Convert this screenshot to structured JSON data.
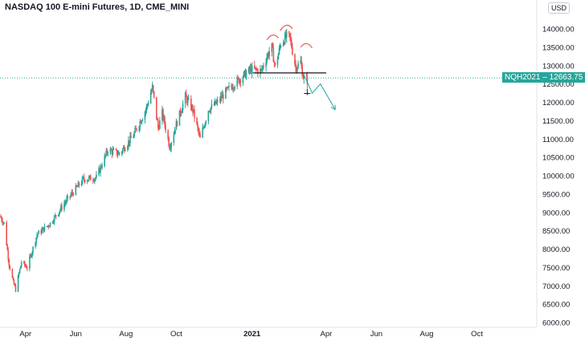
{
  "header": {
    "title": "NASDAQ 100 E-mini Futures, 1D, CME_MINI",
    "currency": "USD"
  },
  "price_label": {
    "symbol": "NQH2021",
    "value": "12663.75"
  },
  "colors": {
    "up": "#26a69a",
    "down": "#ef5350",
    "price_line": "#26a69a",
    "annotation_red": "#ef5350",
    "annotation_neckline": "#131722",
    "projection": "#26a69a"
  },
  "chart_data": {
    "type": "candlestick",
    "title": "NASDAQ 100 E-mini Futures, 1D, CME_MINI",
    "y_axis": {
      "ticks": [
        "14000.00",
        "13500.00",
        "13000.00",
        "12500.00",
        "12000.00",
        "11500.00",
        "11000.00",
        "10500.00",
        "10000.00",
        "9500.00",
        "9000.00",
        "8500.00",
        "8000.00",
        "7500.00",
        "7000.00",
        "6500.00",
        "6000.00"
      ],
      "ylim": [
        5900,
        14500
      ],
      "position": "right"
    },
    "x_axis": {
      "ticks": [
        {
          "label": "Apr",
          "bold": false
        },
        {
          "label": "Jun",
          "bold": false
        },
        {
          "label": "Aug",
          "bold": false
        },
        {
          "label": "Oct",
          "bold": false
        },
        {
          "label": "2021",
          "bold": true
        },
        {
          "label": "Apr",
          "bold": false
        },
        {
          "label": "Jun",
          "bold": false
        },
        {
          "label": "Aug",
          "bold": false
        },
        {
          "label": "Oct",
          "bold": false
        }
      ],
      "range": [
        "2020-03-01",
        "2021-11-30"
      ]
    },
    "last_price": 12663.75,
    "price_path": [
      {
        "date": "2020-03-01",
        "value": 8900
      },
      {
        "date": "2020-03-06",
        "value": 8700
      },
      {
        "date": "2020-03-12",
        "value": 7600
      },
      {
        "date": "2020-03-17",
        "value": 7100
      },
      {
        "date": "2020-03-20",
        "value": 6900
      },
      {
        "date": "2020-03-27",
        "value": 7650
      },
      {
        "date": "2020-04-03",
        "value": 7500
      },
      {
        "date": "2020-04-15",
        "value": 8400
      },
      {
        "date": "2020-05-01",
        "value": 8700
      },
      {
        "date": "2020-05-20",
        "value": 9300
      },
      {
        "date": "2020-06-10",
        "value": 9900
      },
      {
        "date": "2020-06-26",
        "value": 9950
      },
      {
        "date": "2020-07-10",
        "value": 10700
      },
      {
        "date": "2020-07-24",
        "value": 10600
      },
      {
        "date": "2020-08-10",
        "value": 11100
      },
      {
        "date": "2020-08-25",
        "value": 11800
      },
      {
        "date": "2020-09-02",
        "value": 12400
      },
      {
        "date": "2020-09-09",
        "value": 11300
      },
      {
        "date": "2020-09-14",
        "value": 11700
      },
      {
        "date": "2020-09-23",
        "value": 10800
      },
      {
        "date": "2020-10-01",
        "value": 11400
      },
      {
        "date": "2020-10-12",
        "value": 12150
      },
      {
        "date": "2020-10-21",
        "value": 11800
      },
      {
        "date": "2020-10-30",
        "value": 11000
      },
      {
        "date": "2020-11-09",
        "value": 11800
      },
      {
        "date": "2020-11-20",
        "value": 12000
      },
      {
        "date": "2020-12-01",
        "value": 12300
      },
      {
        "date": "2020-12-15",
        "value": 12600
      },
      {
        "date": "2020-12-31",
        "value": 12900
      },
      {
        "date": "2021-01-12",
        "value": 12850
      },
      {
        "date": "2021-01-20",
        "value": 13300
      },
      {
        "date": "2021-01-25",
        "value": 13500
      },
      {
        "date": "2021-01-29",
        "value": 12950
      },
      {
        "date": "2021-02-05",
        "value": 13600
      },
      {
        "date": "2021-02-12",
        "value": 13800
      },
      {
        "date": "2021-02-16",
        "value": 13750
      },
      {
        "date": "2021-02-23",
        "value": 12950
      },
      {
        "date": "2021-03-01",
        "value": 13100
      },
      {
        "date": "2021-03-04",
        "value": 12700
      },
      {
        "date": "2021-03-09",
        "value": 12600
      }
    ],
    "annotations": {
      "head_and_shoulders": [
        {
          "role": "left-shoulder",
          "from": {
            "date": "2021-01-19",
            "value": 13700
          },
          "peak": {
            "date": "2021-01-26",
            "value": 13830
          },
          "to": {
            "date": "2021-02-02",
            "value": 13750
          }
        },
        {
          "role": "head",
          "from": {
            "date": "2021-02-04",
            "value": 13950
          },
          "peak": {
            "date": "2021-02-12",
            "value": 14100
          },
          "to": {
            "date": "2021-02-19",
            "value": 14000
          }
        },
        {
          "role": "right-shoulder",
          "from": {
            "date": "2021-03-01",
            "value": 13500
          },
          "peak": {
            "date": "2021-03-08",
            "value": 13600
          },
          "to": {
            "date": "2021-03-15",
            "value": 13480
          }
        }
      ],
      "neckline": {
        "from": {
          "date": "2021-01-02",
          "value": 12800
        },
        "to": {
          "date": "2021-04-01",
          "value": 12800
        }
      },
      "cross_marker": {
        "date": "2021-03-09",
        "value": 12240
      },
      "projection": [
        {
          "date": "2021-03-06",
          "value": 12700
        },
        {
          "date": "2021-03-15",
          "value": 12250
        },
        {
          "date": "2021-03-25",
          "value": 12500
        },
        {
          "date": "2021-04-12",
          "value": 11800
        }
      ]
    }
  }
}
